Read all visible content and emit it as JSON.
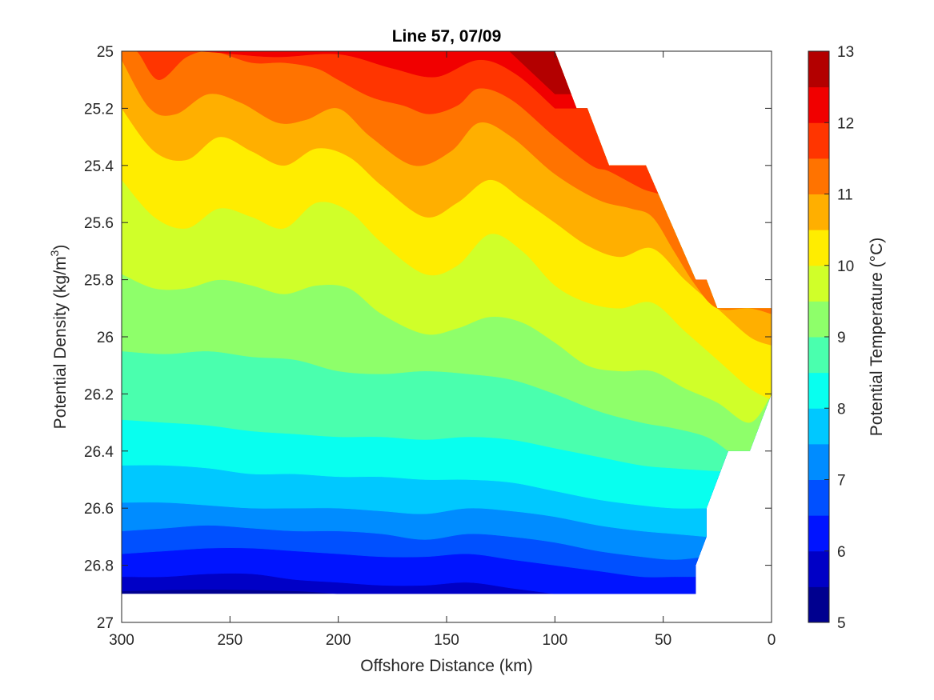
{
  "chart_data": {
    "type": "contour",
    "title": "Line 57, 07/09",
    "xlabel": "Offshore Distance (km)",
    "ylabel_main": "Potential Density (kg/m",
    "ylabel_sup": "3",
    "ylabel_close": ")",
    "colorbar_label": "Potential Temperature (°C)",
    "x_axis": {
      "range": [
        300,
        0
      ],
      "reversed": true,
      "ticks": [
        300,
        250,
        200,
        150,
        100,
        50,
        0
      ]
    },
    "y_axis": {
      "range": [
        25,
        27
      ],
      "reversed": true,
      "ticks": [
        25,
        25.2,
        25.4,
        25.6,
        25.8,
        26,
        26.2,
        26.4,
        26.6,
        26.8,
        27
      ],
      "tick_labels": [
        "25",
        "25.2",
        "25.4",
        "25.6",
        "25.8",
        "26",
        "26.2",
        "26.4",
        "26.6",
        "26.8",
        "27"
      ]
    },
    "colorbar": {
      "range": [
        5,
        13
      ],
      "ticks": [
        5,
        6,
        7,
        8,
        9,
        10,
        11,
        12,
        13
      ],
      "tick_labels": [
        "5",
        "6",
        "7",
        "8",
        "9",
        "10",
        "11",
        "12",
        "13"
      ]
    },
    "levels": [
      5,
      5.5,
      6,
      6.5,
      7,
      7.5,
      8,
      8.5,
      9,
      9.5,
      10,
      10.5,
      11,
      11.5,
      12,
      12.5,
      13
    ],
    "level_colors": [
      "#00008f",
      "#0000c6",
      "#0014ff",
      "#0050ff",
      "#008cff",
      "#00c8ff",
      "#08ffef",
      "#4affae",
      "#8eff6a",
      "#d0ff29",
      "#ffed00",
      "#ffaf00",
      "#ff7300",
      "#ff3500",
      "#f10000",
      "#b30000"
    ],
    "data_extent": {
      "shallow_boundary": [
        [
          300,
          25.0
        ],
        [
          100,
          25.0
        ],
        [
          90,
          25.2
        ],
        [
          85,
          25.2
        ],
        [
          75,
          25.4
        ],
        [
          58,
          25.4
        ],
        [
          35,
          25.8
        ],
        [
          30,
          25.8
        ],
        [
          25,
          25.9
        ],
        [
          0,
          25.9
        ]
      ],
      "deep_boundary": [
        [
          300,
          26.9
        ],
        [
          35,
          26.9
        ],
        [
          35,
          26.8
        ],
        [
          30,
          26.7
        ],
        [
          30,
          26.6
        ],
        [
          20,
          26.4
        ],
        [
          10,
          26.4
        ],
        [
          0,
          26.2
        ]
      ]
    },
    "isotherms": [
      {
        "level": 12.5,
        "points": [
          [
            121,
            25.0
          ],
          [
            107,
            25.1
          ],
          [
            100,
            25.15
          ]
        ]
      },
      {
        "level": 12,
        "points": [
          [
            300,
            25.0
          ],
          [
            265,
            25.0
          ],
          [
            230,
            25.02
          ],
          [
            200,
            25.01
          ],
          [
            175,
            25.06
          ],
          [
            155,
            25.09
          ],
          [
            135,
            25.03
          ],
          [
            118,
            25.08
          ],
          [
            100,
            25.2
          ]
        ]
      },
      {
        "level": 11.5,
        "points": [
          [
            300,
            25.0
          ],
          [
            293,
            25.0
          ],
          [
            283,
            25.1
          ],
          [
            270,
            25.02
          ],
          [
            258,
            25.0
          ],
          [
            240,
            25.04
          ],
          [
            225,
            25.04
          ],
          [
            210,
            25.06
          ],
          [
            200,
            25.1
          ],
          [
            185,
            25.16
          ],
          [
            170,
            25.19
          ],
          [
            158,
            25.22
          ],
          [
            145,
            25.19
          ],
          [
            135,
            25.13
          ],
          [
            120,
            25.17
          ],
          [
            100,
            25.3
          ],
          [
            83,
            25.4
          ],
          [
            75,
            25.42
          ],
          [
            60,
            25.48
          ],
          [
            48,
            25.52
          ],
          [
            40,
            25.65
          ],
          [
            35,
            25.8
          ]
        ]
      },
      {
        "level": 11,
        "points": [
          [
            300,
            25.03
          ],
          [
            287,
            25.2
          ],
          [
            275,
            25.22
          ],
          [
            260,
            25.15
          ],
          [
            245,
            25.18
          ],
          [
            228,
            25.25
          ],
          [
            215,
            25.24
          ],
          [
            200,
            25.2
          ],
          [
            185,
            25.3
          ],
          [
            165,
            25.4
          ],
          [
            148,
            25.35
          ],
          [
            135,
            25.25
          ],
          [
            120,
            25.3
          ],
          [
            100,
            25.43
          ],
          [
            80,
            25.52
          ],
          [
            65,
            25.55
          ],
          [
            55,
            25.58
          ],
          [
            45,
            25.7
          ],
          [
            35,
            25.82
          ],
          [
            25,
            25.9
          ],
          [
            10,
            25.9
          ],
          [
            0,
            25.92
          ]
        ]
      },
      {
        "level": 10.5,
        "points": [
          [
            300,
            25.2
          ],
          [
            285,
            25.35
          ],
          [
            270,
            25.38
          ],
          [
            255,
            25.3
          ],
          [
            240,
            25.35
          ],
          [
            225,
            25.4
          ],
          [
            210,
            25.34
          ],
          [
            195,
            25.37
          ],
          [
            180,
            25.47
          ],
          [
            160,
            25.58
          ],
          [
            145,
            25.53
          ],
          [
            130,
            25.45
          ],
          [
            115,
            25.52
          ],
          [
            100,
            25.6
          ],
          [
            85,
            25.68
          ],
          [
            70,
            25.72
          ],
          [
            55,
            25.69
          ],
          [
            40,
            25.8
          ],
          [
            25,
            25.9
          ],
          [
            10,
            26.0
          ],
          [
            0,
            26.03
          ]
        ]
      },
      {
        "level": 10,
        "points": [
          [
            300,
            25.45
          ],
          [
            285,
            25.58
          ],
          [
            270,
            25.62
          ],
          [
            255,
            25.55
          ],
          [
            240,
            25.58
          ],
          [
            225,
            25.62
          ],
          [
            210,
            25.53
          ],
          [
            195,
            25.56
          ],
          [
            180,
            25.67
          ],
          [
            160,
            25.78
          ],
          [
            145,
            25.75
          ],
          [
            130,
            25.64
          ],
          [
            115,
            25.7
          ],
          [
            100,
            25.82
          ],
          [
            85,
            25.88
          ],
          [
            70,
            25.9
          ],
          [
            55,
            25.88
          ],
          [
            40,
            25.98
          ],
          [
            25,
            26.08
          ],
          [
            10,
            26.18
          ],
          [
            0,
            26.22
          ]
        ]
      },
      {
        "level": 9.5,
        "points": [
          [
            300,
            25.78
          ],
          [
            285,
            25.83
          ],
          [
            270,
            25.83
          ],
          [
            255,
            25.8
          ],
          [
            240,
            25.82
          ],
          [
            225,
            25.85
          ],
          [
            210,
            25.82
          ],
          [
            195,
            25.83
          ],
          [
            180,
            25.92
          ],
          [
            160,
            25.99
          ],
          [
            145,
            25.97
          ],
          [
            130,
            25.93
          ],
          [
            115,
            25.95
          ],
          [
            100,
            26.02
          ],
          [
            85,
            26.1
          ],
          [
            70,
            26.12
          ],
          [
            55,
            26.12
          ],
          [
            40,
            26.18
          ],
          [
            25,
            26.23
          ],
          [
            10,
            26.3
          ],
          [
            0,
            26.2
          ]
        ]
      },
      {
        "level": 9,
        "points": [
          [
            300,
            26.05
          ],
          [
            280,
            26.06
          ],
          [
            260,
            26.05
          ],
          [
            240,
            26.07
          ],
          [
            220,
            26.08
          ],
          [
            200,
            26.12
          ],
          [
            180,
            26.13
          ],
          [
            160,
            26.12
          ],
          [
            140,
            26.13
          ],
          [
            120,
            26.15
          ],
          [
            100,
            26.2
          ],
          [
            80,
            26.26
          ],
          [
            60,
            26.3
          ],
          [
            45,
            26.32
          ],
          [
            30,
            26.35
          ],
          [
            20,
            26.4
          ]
        ]
      },
      {
        "level": 8.5,
        "points": [
          [
            300,
            26.29
          ],
          [
            280,
            26.3
          ],
          [
            260,
            26.31
          ],
          [
            240,
            26.33
          ],
          [
            220,
            26.34
          ],
          [
            200,
            26.35
          ],
          [
            180,
            26.35
          ],
          [
            160,
            26.36
          ],
          [
            140,
            26.35
          ],
          [
            120,
            26.36
          ],
          [
            100,
            26.39
          ],
          [
            80,
            26.42
          ],
          [
            60,
            26.45
          ],
          [
            45,
            26.46
          ],
          [
            25,
            26.47
          ]
        ]
      },
      {
        "level": 8,
        "points": [
          [
            300,
            26.45
          ],
          [
            280,
            26.45
          ],
          [
            260,
            26.46
          ],
          [
            240,
            26.48
          ],
          [
            220,
            26.48
          ],
          [
            200,
            26.49
          ],
          [
            180,
            26.49
          ],
          [
            160,
            26.5
          ],
          [
            140,
            26.5
          ],
          [
            120,
            26.51
          ],
          [
            100,
            26.54
          ],
          [
            80,
            26.57
          ],
          [
            60,
            26.59
          ],
          [
            45,
            26.6
          ],
          [
            30,
            26.6
          ]
        ]
      },
      {
        "level": 7.5,
        "points": [
          [
            300,
            26.58
          ],
          [
            280,
            26.58
          ],
          [
            260,
            26.59
          ],
          [
            240,
            26.6
          ],
          [
            220,
            26.6
          ],
          [
            200,
            26.6
          ],
          [
            180,
            26.61
          ],
          [
            160,
            26.62
          ],
          [
            140,
            26.6
          ],
          [
            120,
            26.61
          ],
          [
            100,
            26.63
          ],
          [
            80,
            26.66
          ],
          [
            60,
            26.68
          ],
          [
            45,
            26.69
          ],
          [
            30,
            26.7
          ]
        ]
      },
      {
        "level": 7,
        "points": [
          [
            300,
            26.68
          ],
          [
            280,
            26.67
          ],
          [
            260,
            26.66
          ],
          [
            240,
            26.67
          ],
          [
            220,
            26.68
          ],
          [
            200,
            26.68
          ],
          [
            180,
            26.69
          ],
          [
            160,
            26.71
          ],
          [
            140,
            26.69
          ],
          [
            120,
            26.7
          ],
          [
            100,
            26.72
          ],
          [
            80,
            26.75
          ],
          [
            60,
            26.77
          ],
          [
            45,
            26.78
          ],
          [
            31,
            26.77
          ]
        ]
      },
      {
        "level": 6.5,
        "points": [
          [
            300,
            26.76
          ],
          [
            280,
            26.75
          ],
          [
            260,
            26.74
          ],
          [
            240,
            26.74
          ],
          [
            220,
            26.75
          ],
          [
            200,
            26.76
          ],
          [
            180,
            26.77
          ],
          [
            160,
            26.77
          ],
          [
            140,
            26.76
          ],
          [
            120,
            26.78
          ],
          [
            100,
            26.8
          ],
          [
            80,
            26.82
          ],
          [
            60,
            26.84
          ],
          [
            45,
            26.84
          ],
          [
            35,
            26.84
          ]
        ]
      },
      {
        "level": 6,
        "points": [
          [
            300,
            26.84
          ],
          [
            280,
            26.84
          ],
          [
            260,
            26.83
          ],
          [
            240,
            26.83
          ],
          [
            220,
            26.85
          ],
          [
            200,
            26.86
          ],
          [
            180,
            26.87
          ],
          [
            160,
            26.87
          ],
          [
            140,
            26.86
          ],
          [
            120,
            26.88
          ],
          [
            100,
            26.9
          ]
        ]
      },
      {
        "level": 5.5,
        "points": [
          [
            300,
            26.89
          ],
          [
            260,
            26.885
          ],
          [
            220,
            26.89
          ],
          [
            200,
            26.9
          ]
        ]
      }
    ]
  }
}
